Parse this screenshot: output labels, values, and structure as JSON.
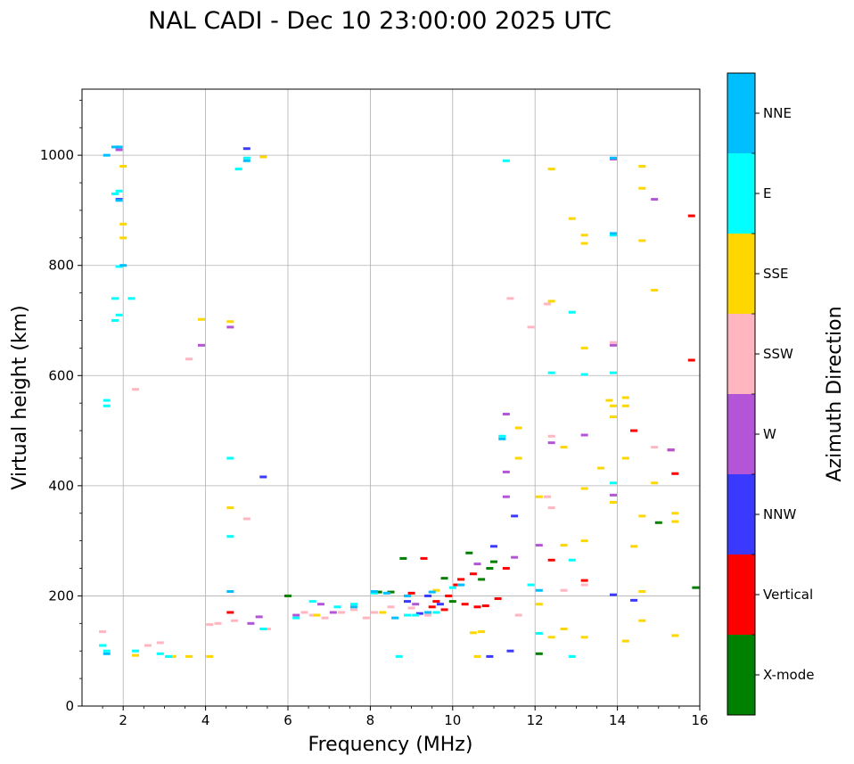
{
  "chart_data": {
    "type": "scatter",
    "title": "NAL CADI - Dec 10 23:00:00 2025 UTC",
    "xlabel": "Frequency (MHz)",
    "ylabel": "Virtual height (km)",
    "xlim": [
      1,
      16
    ],
    "ylim": [
      0,
      1120
    ],
    "xticks": [
      2,
      4,
      6,
      8,
      10,
      12,
      14,
      16
    ],
    "yticks": [
      0,
      200,
      400,
      600,
      800,
      1000
    ],
    "grid": true,
    "colorbar": {
      "label": "Azimuth Direction",
      "categories": [
        {
          "name": "X-mode",
          "color": "#008000"
        },
        {
          "name": "Vertical",
          "color": "#ff0000"
        },
        {
          "name": "NNW",
          "color": "#3a3aff"
        },
        {
          "name": "W",
          "color": "#b455d8"
        },
        {
          "name": "SSW",
          "color": "#ffb6c1"
        },
        {
          "name": "SSE",
          "color": "#ffd700"
        },
        {
          "name": "E",
          "color": "#00ffff"
        },
        {
          "name": "NNE",
          "color": "#00bfff"
        }
      ]
    },
    "series": [
      {
        "name": "X-mode",
        "points": [
          [
            6.0,
            200
          ],
          [
            8.2,
            207
          ],
          [
            8.8,
            268
          ],
          [
            9.8,
            232
          ],
          [
            10.4,
            278
          ],
          [
            10.7,
            230
          ],
          [
            10.9,
            250
          ],
          [
            11.0,
            262
          ],
          [
            15.0,
            333
          ],
          [
            15.9,
            215
          ],
          [
            12.1,
            95
          ],
          [
            8.5,
            207
          ],
          [
            10.0,
            190
          ]
        ]
      },
      {
        "name": "Vertical",
        "points": [
          [
            9.3,
            268
          ],
          [
            9.6,
            190
          ],
          [
            9.9,
            200
          ],
          [
            10.1,
            220
          ],
          [
            10.3,
            185
          ],
          [
            10.6,
            180
          ],
          [
            10.8,
            182
          ],
          [
            11.1,
            195
          ],
          [
            11.3,
            250
          ],
          [
            12.4,
            265
          ],
          [
            13.2,
            228
          ],
          [
            14.4,
            500
          ],
          [
            15.3,
            465
          ],
          [
            15.4,
            422
          ],
          [
            15.8,
            628
          ],
          [
            15.8,
            890
          ],
          [
            9.0,
            205
          ],
          [
            10.2,
            230
          ],
          [
            9.5,
            180
          ],
          [
            10.5,
            240
          ],
          [
            4.6,
            170
          ],
          [
            9.8,
            175
          ]
        ]
      },
      {
        "name": "NNW",
        "points": [
          [
            5.0,
            1012
          ],
          [
            5.4,
            416
          ],
          [
            11.0,
            290
          ],
          [
            11.5,
            345
          ],
          [
            11.4,
            100
          ],
          [
            10.9,
            90
          ],
          [
            14.4,
            192
          ],
          [
            13.9,
            202
          ],
          [
            1.9,
            920
          ],
          [
            9.2,
            168
          ],
          [
            9.7,
            185
          ],
          [
            9.4,
            200
          ],
          [
            8.9,
            190
          ]
        ]
      },
      {
        "name": "W",
        "points": [
          [
            1.9,
            1010
          ],
          [
            3.9,
            655
          ],
          [
            4.6,
            688
          ],
          [
            5.1,
            150
          ],
          [
            5.3,
            162
          ],
          [
            6.2,
            165
          ],
          [
            6.8,
            185
          ],
          [
            11.3,
            380
          ],
          [
            11.3,
            425
          ],
          [
            11.3,
            530
          ],
          [
            12.1,
            292
          ],
          [
            12.4,
            478
          ],
          [
            13.2,
            492
          ],
          [
            13.9,
            993
          ],
          [
            13.9,
            655
          ],
          [
            13.9,
            383
          ],
          [
            14.9,
            920
          ],
          [
            15.3,
            465
          ],
          [
            11.5,
            270
          ],
          [
            7.1,
            170
          ],
          [
            10.6,
            258
          ],
          [
            9.1,
            185
          ]
        ]
      },
      {
        "name": "SSW",
        "points": [
          [
            1.5,
            135
          ],
          [
            2.6,
            110
          ],
          [
            2.9,
            115
          ],
          [
            3.6,
            630
          ],
          [
            4.1,
            148
          ],
          [
            4.3,
            150
          ],
          [
            4.7,
            155
          ],
          [
            5.5,
            140
          ],
          [
            6.4,
            170
          ],
          [
            6.6,
            165
          ],
          [
            6.9,
            160
          ],
          [
            7.3,
            170
          ],
          [
            7.6,
            175
          ],
          [
            8.1,
            170
          ],
          [
            8.5,
            180
          ],
          [
            9.0,
            178
          ],
          [
            9.4,
            165
          ],
          [
            11.4,
            740
          ],
          [
            11.6,
            165
          ],
          [
            11.9,
            688
          ],
          [
            12.3,
            730
          ],
          [
            12.4,
            490
          ],
          [
            12.4,
            360
          ],
          [
            12.3,
            380
          ],
          [
            12.7,
            210
          ],
          [
            13.2,
            220
          ],
          [
            14.9,
            470
          ],
          [
            2.3,
            575
          ],
          [
            5.0,
            340
          ],
          [
            13.9,
            660
          ],
          [
            7.9,
            160
          ]
        ]
      },
      {
        "name": "SSE",
        "points": [
          [
            2.0,
            980
          ],
          [
            2.0,
            875
          ],
          [
            2.0,
            850
          ],
          [
            3.9,
            702
          ],
          [
            4.6,
            698
          ],
          [
            4.6,
            360
          ],
          [
            5.4,
            997
          ],
          [
            12.1,
            185
          ],
          [
            12.1,
            380
          ],
          [
            12.4,
            735
          ],
          [
            12.4,
            975
          ],
          [
            12.7,
            470
          ],
          [
            12.7,
            292
          ],
          [
            12.9,
            885
          ],
          [
            13.2,
            855
          ],
          [
            13.2,
            840
          ],
          [
            13.2,
            650
          ],
          [
            13.2,
            395
          ],
          [
            13.2,
            300
          ],
          [
            13.2,
            125
          ],
          [
            13.8,
            555
          ],
          [
            13.9,
            545
          ],
          [
            13.9,
            525
          ],
          [
            13.9,
            370
          ],
          [
            14.2,
            560
          ],
          [
            14.2,
            545
          ],
          [
            14.2,
            450
          ],
          [
            14.4,
            290
          ],
          [
            14.6,
            980
          ],
          [
            14.6,
            940
          ],
          [
            14.6,
            845
          ],
          [
            14.6,
            345
          ],
          [
            14.6,
            208
          ],
          [
            14.6,
            155
          ],
          [
            14.9,
            755
          ],
          [
            14.9,
            405
          ],
          [
            15.4,
            350
          ],
          [
            15.4,
            335
          ],
          [
            15.4,
            128
          ],
          [
            14.2,
            118
          ],
          [
            12.4,
            125
          ],
          [
            12.7,
            140
          ],
          [
            13.6,
            432
          ],
          [
            2.3,
            92
          ],
          [
            3.2,
            90
          ],
          [
            3.6,
            90
          ],
          [
            4.1,
            90
          ],
          [
            10.6,
            90
          ],
          [
            11.6,
            450
          ],
          [
            11.6,
            505
          ],
          [
            10.7,
            135
          ],
          [
            10.5,
            133
          ],
          [
            6.7,
            165
          ],
          [
            8.3,
            170
          ],
          [
            9.6,
            210
          ]
        ]
      },
      {
        "name": "E",
        "points": [
          [
            1.6,
            545
          ],
          [
            1.6,
            555
          ],
          [
            1.8,
            740
          ],
          [
            1.8,
            700
          ],
          [
            1.9,
            710
          ],
          [
            1.9,
            798
          ],
          [
            1.8,
            930
          ],
          [
            1.9,
            935
          ],
          [
            2.2,
            740
          ],
          [
            4.6,
            450
          ],
          [
            4.6,
            308
          ],
          [
            4.8,
            975
          ],
          [
            5.0,
            995
          ],
          [
            5.4,
            140
          ],
          [
            6.2,
            160
          ],
          [
            6.6,
            190
          ],
          [
            7.2,
            180
          ],
          [
            7.6,
            185
          ],
          [
            8.7,
            90
          ],
          [
            9.1,
            165
          ],
          [
            11.3,
            990
          ],
          [
            11.2,
            490
          ],
          [
            11.9,
            220
          ],
          [
            12.1,
            132
          ],
          [
            12.4,
            605
          ],
          [
            12.9,
            715
          ],
          [
            12.9,
            265
          ],
          [
            12.9,
            90
          ],
          [
            13.2,
            602
          ],
          [
            13.9,
            855
          ],
          [
            13.9,
            605
          ],
          [
            13.9,
            405
          ],
          [
            1.5,
            110
          ],
          [
            1.6,
            100
          ],
          [
            2.3,
            100
          ],
          [
            3.1,
            90
          ],
          [
            8.1,
            205
          ],
          [
            8.9,
            165
          ],
          [
            9.6,
            170
          ],
          [
            10.0,
            215
          ],
          [
            2.9,
            95
          ]
        ]
      },
      {
        "name": "NNE",
        "points": [
          [
            1.8,
            1015
          ],
          [
            1.9,
            1015
          ],
          [
            1.6,
            1000
          ],
          [
            1.9,
            918
          ],
          [
            2.0,
            800
          ],
          [
            4.6,
            208
          ],
          [
            5.0,
            990
          ],
          [
            8.4,
            205
          ],
          [
            8.9,
            200
          ],
          [
            9.5,
            207
          ],
          [
            11.2,
            485
          ],
          [
            12.1,
            210
          ],
          [
            13.9,
            858
          ],
          [
            13.9,
            995
          ],
          [
            1.6,
            95
          ],
          [
            7.6,
            180
          ],
          [
            8.1,
            208
          ],
          [
            9.4,
            170
          ],
          [
            10.2,
            220
          ],
          [
            8.6,
            160
          ]
        ]
      }
    ]
  }
}
